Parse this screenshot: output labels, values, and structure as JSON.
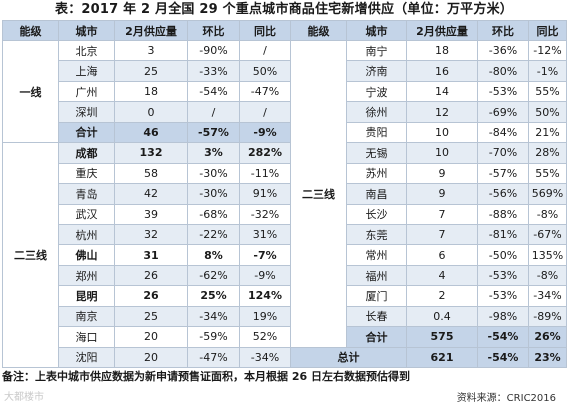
{
  "title": "表：2017 年 2 月全国 29 个重点城市商品住宅新增供应（单位：万平方米）",
  "headers_left": [
    "能级",
    "城市",
    "2月供应量",
    "环比",
    "同比"
  ],
  "headers_right": [
    "能级",
    "城市",
    "2月供应量",
    "环比",
    "同比"
  ],
  "level_first_tier": "一线",
  "level_second_third_left": "二三线",
  "level_second_third_right": "二三线",
  "left_rows": [
    {
      "city": "北京",
      "supply": "3",
      "mom": "-90%",
      "yoy": "/"
    },
    {
      "city": "上海",
      "supply": "25",
      "mom": "-33%",
      "yoy": "50%"
    },
    {
      "city": "广州",
      "supply": "18",
      "mom": "-54%",
      "yoy": "-47%"
    },
    {
      "city": "深圳",
      "supply": "0",
      "mom": "/",
      "yoy": "/"
    },
    {
      "city": "合计",
      "supply": "46",
      "mom": "-57%",
      "yoy": "-9%"
    },
    {
      "city": "成都",
      "supply": "132",
      "mom": "3%",
      "yoy": "282%"
    },
    {
      "city": "重庆",
      "supply": "58",
      "mom": "-30%",
      "yoy": "-11%"
    },
    {
      "city": "青岛",
      "supply": "42",
      "mom": "-30%",
      "yoy": "91%"
    },
    {
      "city": "武汉",
      "supply": "39",
      "mom": "-68%",
      "yoy": "-32%"
    },
    {
      "city": "杭州",
      "supply": "32",
      "mom": "-22%",
      "yoy": "31%"
    },
    {
      "city": "佛山",
      "supply": "31",
      "mom": "8%",
      "yoy": "-7%"
    },
    {
      "city": "郑州",
      "supply": "26",
      "mom": "-62%",
      "yoy": "-9%"
    },
    {
      "city": "昆明",
      "supply": "26",
      "mom": "25%",
      "yoy": "124%"
    },
    {
      "city": "南京",
      "supply": "25",
      "mom": "-34%",
      "yoy": "19%"
    },
    {
      "city": "海口",
      "supply": "20",
      "mom": "-59%",
      "yoy": "52%"
    },
    {
      "city": "沈阳",
      "supply": "20",
      "mom": "-47%",
      "yoy": "-34%"
    }
  ],
  "right_rows": [
    {
      "city": "南宁",
      "supply": "18",
      "mom": "-36%",
      "yoy": "-12%"
    },
    {
      "city": "济南",
      "supply": "16",
      "mom": "-80%",
      "yoy": "-1%"
    },
    {
      "city": "宁波",
      "supply": "14",
      "mom": "-53%",
      "yoy": "55%"
    },
    {
      "city": "徐州",
      "supply": "12",
      "mom": "-69%",
      "yoy": "50%"
    },
    {
      "city": "贵阳",
      "supply": "10",
      "mom": "-84%",
      "yoy": "21%"
    },
    {
      "city": "无锡",
      "supply": "10",
      "mom": "-70%",
      "yoy": "28%"
    },
    {
      "city": "苏州",
      "supply": "9",
      "mom": "-57%",
      "yoy": "55%"
    },
    {
      "city": "南昌",
      "supply": "9",
      "mom": "-56%",
      "yoy": "569%"
    },
    {
      "city": "长沙",
      "supply": "7",
      "mom": "-88%",
      "yoy": "-8%"
    },
    {
      "city": "东莞",
      "supply": "7",
      "mom": "-81%",
      "yoy": "-67%"
    },
    {
      "city": "常州",
      "supply": "6",
      "mom": "-50%",
      "yoy": "135%"
    },
    {
      "city": "福州",
      "supply": "4",
      "mom": "-53%",
      "yoy": "-8%"
    },
    {
      "city": "厦门",
      "supply": "2",
      "mom": "-53%",
      "yoy": "-34%"
    },
    {
      "city": "长春",
      "supply": "0.4",
      "mom": "-98%",
      "yoy": "-89%"
    },
    {
      "city": "合计",
      "supply": "575",
      "mom": "-54%",
      "yoy": "26%"
    }
  ],
  "grand_total": {
    "label": "总计",
    "supply": "621",
    "mom": "-54%",
    "yoy": "23%"
  },
  "note": "备注：上表中城市供应数据为新申请预售证面积，本月根据 26 日左右数据预估得到",
  "source": "资料来源：CRIC2016",
  "watermark": "大都楼市",
  "colors": {
    "header": "#c4d4e8",
    "row_shade": "#e5ecf4",
    "border": "#b7c4d4"
  }
}
